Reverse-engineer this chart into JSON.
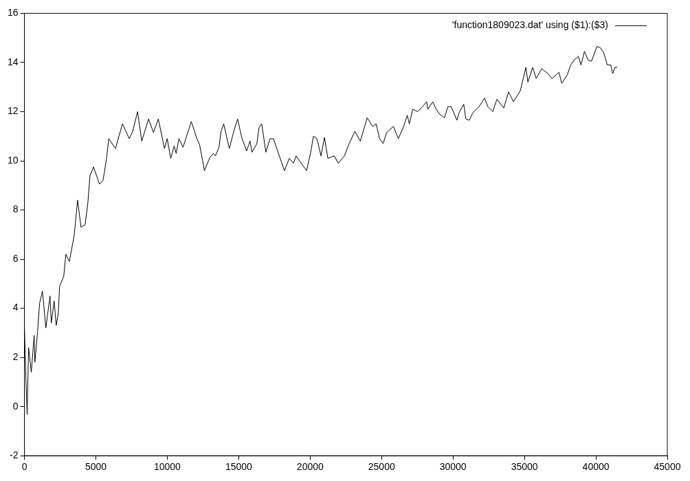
{
  "chart_data": {
    "type": "line",
    "legend": "top right",
    "grid": false,
    "marker": "none",
    "line_style": "solid",
    "xlim": [
      0,
      45000
    ],
    "xticks": [
      0,
      5000,
      10000,
      15000,
      20000,
      25000,
      30000,
      35000,
      40000,
      45000
    ],
    "ylim": [
      -2,
      16
    ],
    "yticks": [
      -2,
      0,
      2,
      4,
      6,
      8,
      10,
      12,
      14,
      16
    ],
    "series": [
      {
        "name": "'function1809023.dat' using ($1):($3)",
        "color": "#000000",
        "x": [
          0,
          100,
          190,
          290,
          480,
          680,
          730,
          920,
          1060,
          1260,
          1500,
          1790,
          1880,
          2080,
          2220,
          2370,
          2460,
          2750,
          2900,
          3140,
          3480,
          3720,
          3960,
          4250,
          4440,
          4590,
          4830,
          5260,
          5500,
          5750,
          5900,
          6370,
          6860,
          7340,
          7580,
          7920,
          8210,
          8690,
          9030,
          9370,
          9800,
          9990,
          10240,
          10480,
          10620,
          10810,
          11100,
          11680,
          12070,
          12260,
          12410,
          12600,
          12990,
          13230,
          13370,
          13620,
          13760,
          13950,
          14340,
          14680,
          14920,
          15210,
          15550,
          15790,
          15930,
          16270,
          16420,
          16610,
          16900,
          17190,
          17430,
          17720,
          18200,
          18540,
          18830,
          19020,
          19310,
          19750,
          20040,
          20230,
          20470,
          20760,
          21000,
          21240,
          21680,
          21970,
          22400,
          22690,
          23130,
          23510,
          23990,
          24380,
          24620,
          24860,
          25110,
          25350,
          25830,
          26170,
          26510,
          26800,
          26940,
          27180,
          27520,
          27860,
          28150,
          28240,
          28580,
          28820,
          29060,
          29400,
          29640,
          29880,
          30270,
          30420,
          30750,
          30900,
          31140,
          31380,
          31820,
          32200,
          32440,
          32780,
          33070,
          33550,
          33890,
          34230,
          34710,
          35100,
          35240,
          35580,
          35820,
          36210,
          36640,
          36930,
          37420,
          37610,
          38000,
          38240,
          38480,
          38770,
          38960,
          39200,
          39450,
          39690,
          40070,
          40310,
          40550,
          40800,
          41040,
          41180,
          41330,
          41500
        ],
        "values": [
          3.2,
          1.2,
          -0.33,
          2.4,
          1.4,
          2.9,
          1.8,
          3.05,
          4.2,
          4.7,
          3.2,
          4.5,
          3.4,
          4.3,
          3.3,
          3.8,
          4.9,
          5.3,
          6.2,
          5.9,
          6.95,
          8.4,
          7.3,
          7.4,
          8.3,
          9.4,
          9.75,
          9.05,
          9.2,
          10.1,
          10.9,
          10.5,
          11.5,
          10.9,
          11.2,
          12.0,
          10.8,
          11.7,
          11.15,
          11.7,
          10.5,
          10.9,
          10.1,
          10.6,
          10.3,
          10.9,
          10.55,
          11.6,
          10.9,
          10.65,
          10.2,
          9.6,
          10.15,
          10.3,
          10.2,
          10.55,
          11.2,
          11.5,
          10.5,
          11.25,
          11.7,
          10.95,
          10.4,
          10.8,
          10.35,
          10.7,
          11.35,
          11.5,
          10.35,
          10.9,
          10.9,
          10.4,
          9.6,
          10.1,
          9.9,
          10.2,
          9.95,
          9.6,
          10.35,
          11.0,
          10.9,
          10.2,
          10.95,
          10.1,
          10.2,
          9.9,
          10.2,
          10.65,
          11.2,
          10.8,
          11.75,
          11.4,
          11.5,
          10.9,
          10.7,
          11.15,
          11.4,
          10.9,
          11.35,
          11.85,
          11.5,
          12.1,
          12.0,
          12.2,
          12.4,
          12.1,
          12.4,
          12.1,
          11.9,
          11.75,
          12.2,
          12.2,
          11.65,
          11.95,
          12.3,
          11.7,
          11.65,
          11.95,
          12.2,
          12.55,
          12.2,
          12.0,
          12.5,
          12.15,
          12.8,
          12.4,
          12.85,
          13.8,
          13.2,
          13.8,
          13.35,
          13.75,
          13.55,
          13.35,
          13.6,
          13.15,
          13.5,
          13.9,
          14.1,
          14.25,
          13.9,
          14.45,
          14.1,
          14.05,
          14.65,
          14.6,
          14.4,
          13.9,
          13.9,
          13.55,
          13.8,
          13.8
        ]
      }
    ]
  }
}
